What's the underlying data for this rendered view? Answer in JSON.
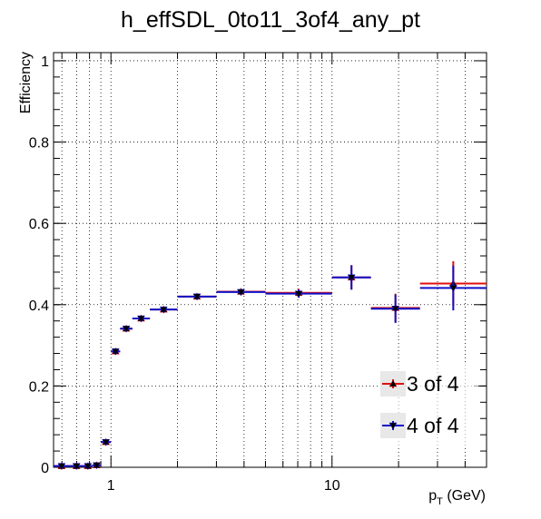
{
  "chart_data": {
    "type": "scatter",
    "title": "h_effSDL_0to11_3of4_any_pt",
    "xlabel": "p",
    "xlabel_sub": "T",
    "xlabel_unit": " (GeV)",
    "ylabel": "Efficiency",
    "xscale": "log",
    "xlim": [
      0.55,
      50
    ],
    "ylim": [
      0,
      1.02
    ],
    "grid": true,
    "legend_position": "bottom-right",
    "x_ticks": [
      {
        "value": 1,
        "label": "1"
      },
      {
        "value": 10,
        "label": "10"
      }
    ],
    "y_ticks": [
      {
        "value": 0,
        "label": "0"
      },
      {
        "value": 0.2,
        "label": "0.2"
      },
      {
        "value": 0.4,
        "label": "0.4"
      },
      {
        "value": 0.6,
        "label": "0.6"
      },
      {
        "value": 0.8,
        "label": "0.8"
      },
      {
        "value": 1,
        "label": "1"
      }
    ],
    "series": [
      {
        "name": "3 of 4",
        "color": "#e01010",
        "marker": "triangle-up",
        "points": [
          {
            "xlo": 0.55,
            "xhi": 0.65,
            "y": 0.003,
            "err": 0.002
          },
          {
            "xlo": 0.65,
            "xhi": 0.75,
            "y": 0.003,
            "err": 0.002
          },
          {
            "xlo": 0.75,
            "xhi": 0.825,
            "y": 0.003,
            "err": 0.002
          },
          {
            "xlo": 0.825,
            "xhi": 0.9,
            "y": 0.005,
            "err": 0.002
          },
          {
            "xlo": 0.9,
            "xhi": 1.0,
            "y": 0.062,
            "err": 0.004
          },
          {
            "xlo": 1.0,
            "xhi": 1.1,
            "y": 0.285,
            "err": 0.005
          },
          {
            "xlo": 1.1,
            "xhi": 1.25,
            "y": 0.341,
            "err": 0.005
          },
          {
            "xlo": 1.25,
            "xhi": 1.5,
            "y": 0.366,
            "err": 0.005
          },
          {
            "xlo": 1.5,
            "xhi": 2.0,
            "y": 0.388,
            "err": 0.005
          },
          {
            "xlo": 2.0,
            "xhi": 3.0,
            "y": 0.42,
            "err": 0.005
          },
          {
            "xlo": 3.0,
            "xhi": 5.0,
            "y": 0.432,
            "err": 0.005
          },
          {
            "xlo": 5.0,
            "xhi": 10.0,
            "y": 0.429,
            "err": 0.01
          },
          {
            "xlo": 10.0,
            "xhi": 15.0,
            "y": 0.467,
            "err": 0.03
          },
          {
            "xlo": 15.0,
            "xhi": 25.0,
            "y": 0.392,
            "err": 0.035
          },
          {
            "xlo": 25.0,
            "xhi": 50.0,
            "y": 0.452,
            "err": 0.055
          }
        ]
      },
      {
        "name": "4 of 4",
        "color": "#1010c8",
        "marker": "triangle-down",
        "points": [
          {
            "xlo": 0.55,
            "xhi": 0.65,
            "y": 0.003,
            "err": 0.002
          },
          {
            "xlo": 0.65,
            "xhi": 0.75,
            "y": 0.003,
            "err": 0.002
          },
          {
            "xlo": 0.75,
            "xhi": 0.825,
            "y": 0.003,
            "err": 0.002
          },
          {
            "xlo": 0.825,
            "xhi": 0.9,
            "y": 0.005,
            "err": 0.002
          },
          {
            "xlo": 0.9,
            "xhi": 1.0,
            "y": 0.062,
            "err": 0.004
          },
          {
            "xlo": 1.0,
            "xhi": 1.1,
            "y": 0.285,
            "err": 0.005
          },
          {
            "xlo": 1.1,
            "xhi": 1.25,
            "y": 0.341,
            "err": 0.005
          },
          {
            "xlo": 1.25,
            "xhi": 1.5,
            "y": 0.366,
            "err": 0.005
          },
          {
            "xlo": 1.5,
            "xhi": 2.0,
            "y": 0.388,
            "err": 0.005
          },
          {
            "xlo": 2.0,
            "xhi": 3.0,
            "y": 0.42,
            "err": 0.005
          },
          {
            "xlo": 3.0,
            "xhi": 5.0,
            "y": 0.431,
            "err": 0.005
          },
          {
            "xlo": 5.0,
            "xhi": 10.0,
            "y": 0.427,
            "err": 0.01
          },
          {
            "xlo": 10.0,
            "xhi": 15.0,
            "y": 0.467,
            "err": 0.03
          },
          {
            "xlo": 15.0,
            "xhi": 25.0,
            "y": 0.39,
            "err": 0.035
          },
          {
            "xlo": 25.0,
            "xhi": 50.0,
            "y": 0.441,
            "err": 0.055
          }
        ]
      }
    ]
  }
}
